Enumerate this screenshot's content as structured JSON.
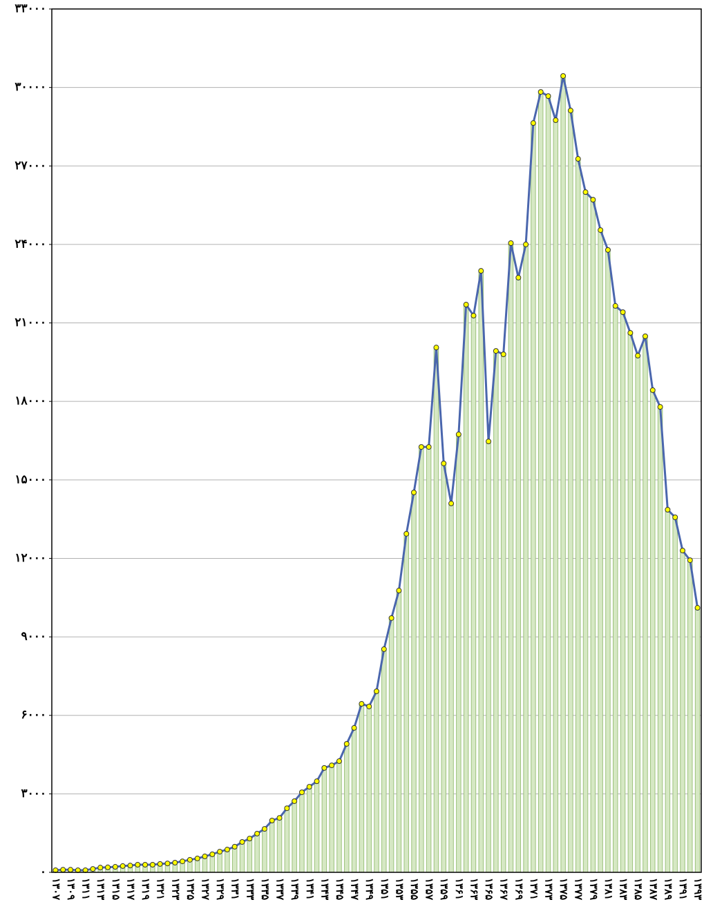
{
  "chart_data": {
    "type": "bar",
    "overlay_line": true,
    "markers": true,
    "categories": [
      "۱۳۰۷",
      null,
      "۱۳۰۹",
      null,
      "۱۳۱۱",
      null,
      "۱۳۱۳",
      null,
      "۱۳۱۵",
      null,
      "۱۳۱۷",
      null,
      "۱۳۱۹",
      null,
      "۱۳۲۱",
      null,
      "۱۳۲۳",
      null,
      "۱۳۲۵",
      null,
      "۱۳۲۷",
      null,
      "۱۳۲۹",
      null,
      "۱۳۳۱",
      null,
      "۱۳۳۳",
      null,
      "۱۳۳۵",
      null,
      "۱۳۳۷",
      null,
      "۱۳۳۹",
      null,
      "۱۳۴۱",
      null,
      "۱۳۴۳",
      null,
      "۱۳۴۵",
      null,
      "۱۳۴۷",
      null,
      "۱۳۴۹",
      null,
      "۱۳۵۱",
      null,
      "۱۳۵۳",
      null,
      "۱۳۵۵",
      null,
      "۱۳۵۷",
      null,
      "۱۳۵۹",
      null,
      "۱۳۶۱",
      null,
      "۱۳۶۳",
      null,
      "۱۳۶۵",
      null,
      "۱۳۶۷",
      null,
      "۱۳۶۹",
      null,
      "۱۳۷۱",
      null,
      "۱۳۷۳",
      null,
      "۱۳۷۵",
      null,
      "۱۳۷۷",
      null,
      "۱۳۷۹",
      null,
      "۱۳۸۱",
      null,
      "۱۳۸۳",
      null,
      "۱۳۸۵",
      null,
      "۱۳۸۷",
      null,
      "۱۳۸۹",
      null,
      "۱۳۹۱",
      null,
      "۱۳۹۳"
    ],
    "values": [
      80,
      100,
      100,
      80,
      80,
      130,
      180,
      190,
      210,
      240,
      260,
      290,
      290,
      290,
      320,
      340,
      370,
      420,
      480,
      530,
      610,
      690,
      790,
      870,
      980,
      1160,
      1290,
      1480,
      1660,
      1980,
      2080,
      2450,
      2720,
      3060,
      3270,
      3480,
      3990,
      4090,
      4250,
      4910,
      5520,
      6440,
      6340,
      6920,
      8530,
      9720,
      10770,
      12940,
      14520,
      16260,
      16260,
      20060,
      15630,
      14100,
      16740,
      21700,
      21280,
      22990,
      16470,
      19930,
      19800,
      24050,
      22730,
      24000,
      28640,
      29830,
      29670,
      28750,
      30440,
      29120,
      27270,
      26000,
      25710,
      24550,
      23790,
      21650,
      21410,
      20620,
      19750,
      20490,
      18430,
      17790,
      13860,
      13570,
      12300,
      11930,
      10110
    ],
    "color": "#d6e8c4",
    "bar_edge_color": "#9cc27c",
    "line_color": "#4a66ad",
    "marker_color": "#ffff00",
    "ylim": [
      0,
      33000
    ],
    "yticks": [
      {
        "value": 0,
        "label": "۰"
      },
      {
        "value": 3000,
        "label": "۳۰۰۰"
      },
      {
        "value": 6000,
        "label": "۶۰۰۰"
      },
      {
        "value": 9000,
        "label": "۹۰۰۰"
      },
      {
        "value": 12000,
        "label": "۱۲۰۰۰"
      },
      {
        "value": 15000,
        "label": "۱۵۰۰۰"
      },
      {
        "value": 18000,
        "label": "۱۸۰۰۰"
      },
      {
        "value": 21000,
        "label": "۲۱۰۰۰"
      },
      {
        "value": 24000,
        "label": "۲۴۰۰۰"
      },
      {
        "value": 27000,
        "label": "۲۷۰۰۰"
      },
      {
        "value": 30000,
        "label": "۳۰۰۰۰"
      },
      {
        "value": 33000,
        "label": "۳۳۰۰۰"
      }
    ],
    "grid": true
  }
}
